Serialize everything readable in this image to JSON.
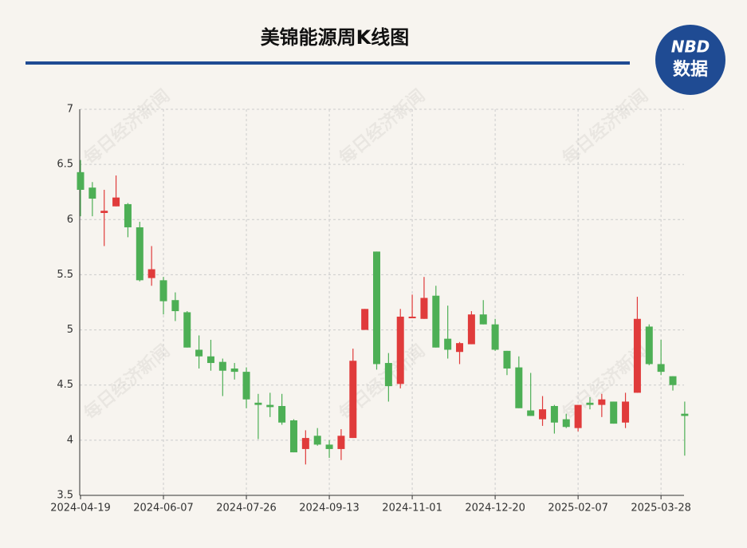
{
  "header": {
    "title": "美锦能源周K线图"
  },
  "logo": {
    "top": "NBD",
    "bottom": "数据"
  },
  "watermark": "每日经济新闻",
  "chart_data": {
    "type": "candlestick",
    "categories": [
      "2024-04-19",
      null,
      null,
      null,
      null,
      null,
      null,
      "2024-06-07",
      null,
      null,
      null,
      null,
      null,
      null,
      "2024-07-26",
      null,
      null,
      null,
      null,
      null,
      null,
      "2024-09-13",
      null,
      null,
      null,
      null,
      null,
      null,
      "2024-11-01",
      null,
      null,
      null,
      null,
      null,
      null,
      "2024-12-20",
      null,
      null,
      null,
      null,
      null,
      null,
      "2025-02-07",
      null,
      null,
      null,
      null,
      null,
      null,
      "2025-03-28",
      null,
      null
    ],
    "open": [
      6.43,
      6.29,
      6.06,
      6.12,
      6.14,
      5.93,
      5.47,
      5.45,
      5.27,
      5.16,
      4.82,
      4.76,
      4.71,
      4.65,
      4.62,
      4.34,
      4.32,
      4.31,
      4.18,
      3.92,
      4.04,
      3.96,
      3.92,
      4.02,
      5.0,
      5.71,
      4.7,
      4.51,
      5.11,
      5.1,
      5.31,
      4.92,
      4.8,
      4.87,
      5.14,
      5.05,
      4.81,
      4.66,
      4.27,
      4.19,
      4.31,
      4.19,
      4.11,
      4.34,
      4.32,
      4.35,
      4.16,
      4.43,
      5.03,
      4.69,
      4.58,
      4.24
    ],
    "close": [
      6.27,
      6.19,
      6.08,
      6.2,
      5.93,
      5.45,
      5.55,
      5.26,
      5.17,
      4.84,
      4.76,
      4.7,
      4.63,
      4.62,
      4.37,
      4.32,
      4.3,
      4.16,
      3.89,
      4.02,
      3.96,
      3.92,
      4.04,
      4.72,
      5.19,
      4.69,
      4.49,
      5.12,
      5.12,
      5.29,
      4.84,
      4.82,
      4.88,
      5.14,
      5.05,
      4.82,
      4.65,
      4.29,
      4.22,
      4.28,
      4.16,
      4.12,
      4.32,
      4.32,
      4.37,
      4.15,
      4.35,
      5.1,
      4.69,
      4.62,
      4.5,
      4.22
    ],
    "high": [
      6.54,
      6.34,
      6.27,
      6.4,
      6.15,
      5.98,
      5.76,
      5.48,
      5.34,
      5.17,
      4.95,
      4.91,
      4.74,
      4.7,
      4.66,
      4.42,
      4.43,
      4.42,
      4.19,
      4.09,
      4.11,
      4.0,
      4.1,
      4.83,
      5.19,
      5.71,
      4.79,
      5.19,
      5.32,
      5.48,
      5.4,
      5.22,
      4.89,
      5.17,
      5.27,
      5.1,
      4.81,
      4.76,
      4.61,
      4.4,
      4.32,
      4.24,
      4.32,
      4.39,
      4.42,
      4.35,
      4.43,
      5.3,
      5.05,
      4.91,
      4.58,
      4.35
    ],
    "low": [
      6.03,
      6.03,
      5.76,
      6.12,
      5.84,
      5.44,
      5.4,
      5.14,
      5.08,
      4.84,
      4.65,
      4.63,
      4.4,
      4.55,
      4.29,
      4.01,
      4.21,
      4.14,
      3.89,
      3.78,
      3.95,
      3.84,
      3.82,
      4.02,
      5.0,
      4.64,
      4.35,
      4.47,
      5.11,
      5.1,
      4.84,
      4.74,
      4.69,
      4.87,
      5.05,
      4.81,
      4.59,
      4.29,
      4.22,
      4.13,
      4.06,
      4.11,
      4.08,
      4.28,
      4.21,
      4.15,
      4.11,
      4.43,
      4.68,
      4.59,
      4.45,
      3.86
    ],
    "up_color": "#e03b3b",
    "down_color": "#4daf55",
    "ylim": [
      3.5,
      7
    ],
    "yticks": [
      3.5,
      4,
      4.5,
      5,
      5.5,
      6,
      6.5,
      7
    ],
    "grid": true
  }
}
